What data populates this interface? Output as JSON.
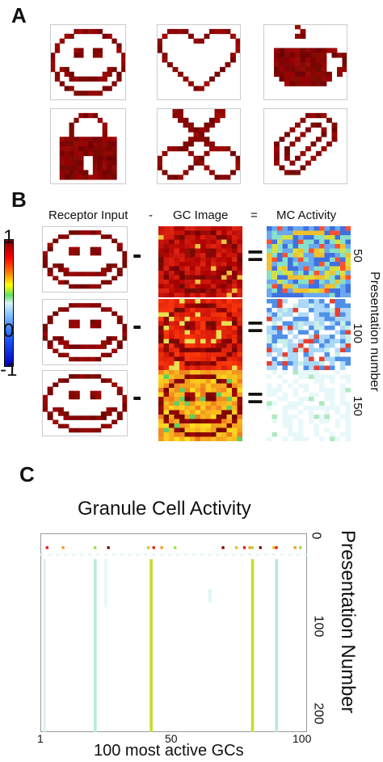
{
  "panel_a": {
    "letter": "A",
    "icons": [
      {
        "name": "smiley-icon"
      },
      {
        "name": "heart-icon"
      },
      {
        "name": "coffee-cup-icon"
      },
      {
        "name": "padlock-icon"
      },
      {
        "name": "scissors-icon"
      },
      {
        "name": "paperclip-icon"
      }
    ]
  },
  "panel_b": {
    "letter": "B",
    "headers": {
      "receptor": "Receptor Input",
      "minus": "-",
      "gc": "GC Image",
      "equals": "=",
      "mc": "MC Activity"
    },
    "colorbar": {
      "max": "1",
      "mid": "0",
      "min": "-1"
    },
    "presentation_ticks": [
      "50",
      "100",
      "150"
    ],
    "presentation_label": "Presentation number",
    "row_operators": {
      "minus": "-",
      "equals": "="
    }
  },
  "panel_c": {
    "letter": "C",
    "title": "Granule Cell Activity",
    "xlabel": "100 most active GCs",
    "xticks": [
      "1",
      "50",
      "100"
    ],
    "yticks": [
      "0",
      "100",
      "200"
    ],
    "ylabel": "Presentation Number"
  },
  "colors": {
    "dark_red": "#7a0a08",
    "mid_red": "#b01010",
    "orange": "#f0a020",
    "cyan": "#a8e8ec",
    "green": "#b8e040"
  }
}
